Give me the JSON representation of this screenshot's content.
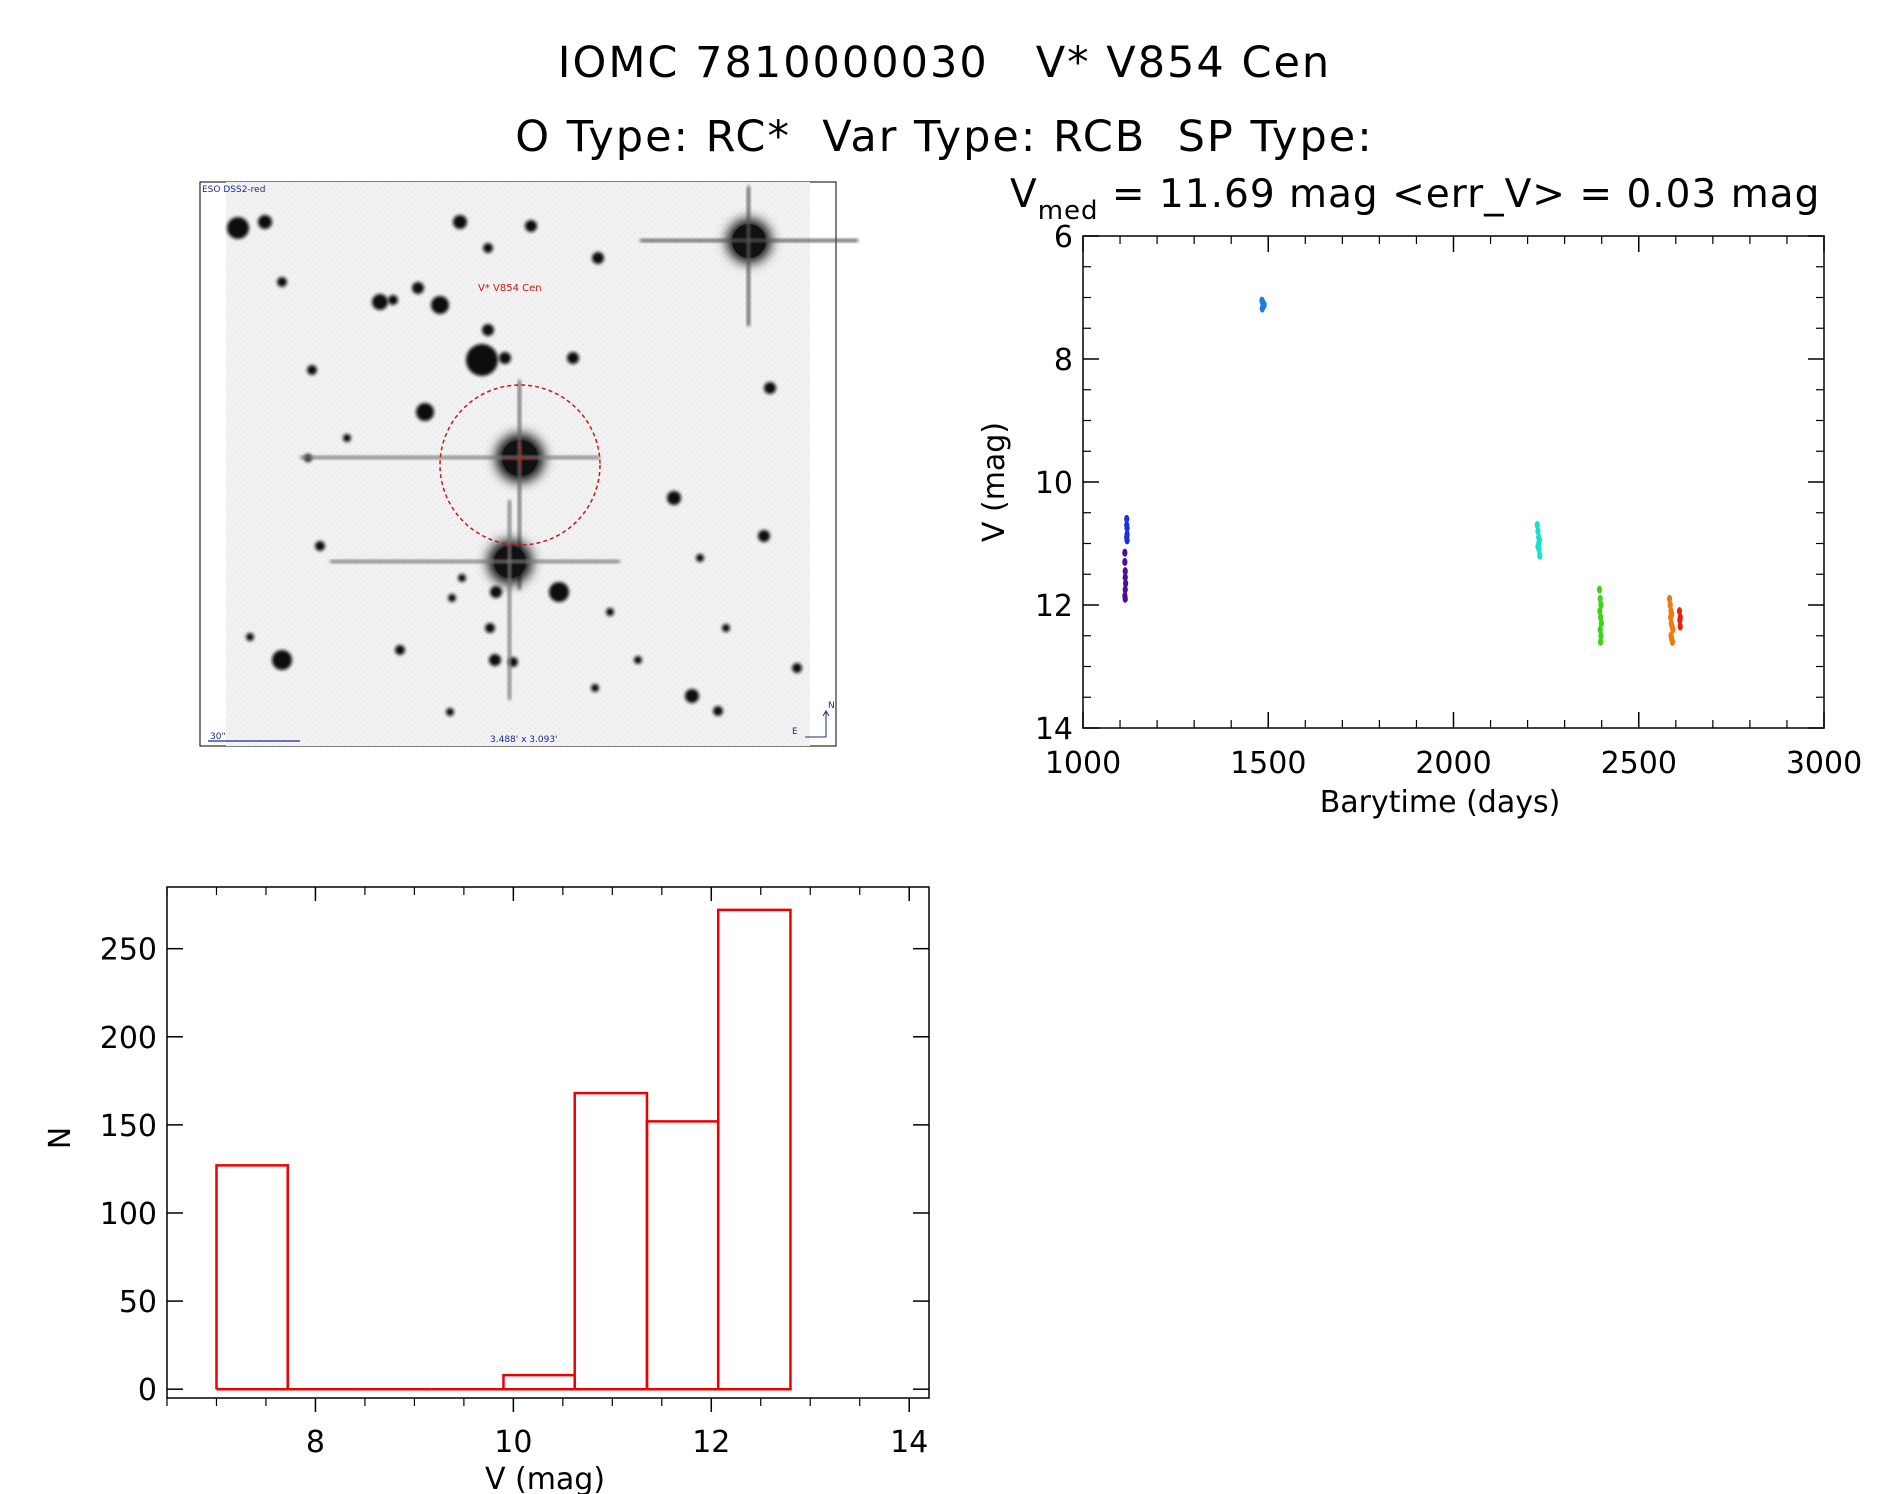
{
  "header": {
    "line1": "IOMC 7810000030   V* V854 Cen",
    "line2": "O Type: RC*  Var Type: RCB  SP Type:"
  },
  "stats": {
    "vmed_label": "V",
    "vmed_sub": "med",
    "text": " = 11.69 mag <err_V> = 0.03 mag"
  },
  "sky_image": {
    "survey_label": "ESO DSS2-red",
    "target_label": "V* V854 Cen",
    "scale_label": "30\"",
    "fov_label": "3.488' x 3.093'",
    "compass_north": "N",
    "compass_east": "E"
  },
  "colors": {
    "hist": "#ee0000",
    "target": "#c81818"
  },
  "chart_data": [
    {
      "type": "scatter",
      "title": "",
      "xlabel": "Barytime (days)",
      "ylabel": "V (mag)",
      "xlim": [
        1000,
        3000
      ],
      "ylim": [
        14,
        6
      ],
      "y_inverted": true,
      "xticks": [
        1000,
        1500,
        2000,
        2500,
        3000
      ],
      "yticks": [
        6,
        8,
        10,
        12,
        14
      ],
      "series": [
        {
          "name": "g1",
          "color": "#4b0d9c",
          "x": [
            1113,
            1113,
            1114,
            1114,
            1115,
            1114,
            1113,
            1114
          ],
          "y": [
            11.15,
            11.3,
            11.45,
            11.55,
            11.65,
            11.75,
            11.85,
            11.9
          ]
        },
        {
          "name": "g2",
          "color": "#1d30e0",
          "x": [
            1118,
            1118,
            1119,
            1119,
            1118,
            1119
          ],
          "y": [
            10.6,
            10.7,
            10.75,
            10.85,
            10.9,
            10.95
          ]
        },
        {
          "name": "g3",
          "color": "#1a7de0",
          "x": [
            1483,
            1485,
            1487,
            1489,
            1486,
            1484
          ],
          "y": [
            7.05,
            7.08,
            7.1,
            7.12,
            7.15,
            7.18
          ]
        },
        {
          "name": "g4",
          "color": "#18e0d0",
          "x": [
            2226,
            2228,
            2230,
            2232,
            2230,
            2228,
            2231,
            2233
          ],
          "y": [
            10.7,
            10.8,
            10.9,
            10.95,
            11.0,
            11.05,
            11.1,
            11.2
          ]
        },
        {
          "name": "g5",
          "color": "#3ed41a",
          "x": [
            2394,
            2396,
            2398,
            2395,
            2397,
            2399,
            2396,
            2398,
            2397
          ],
          "y": [
            11.75,
            11.9,
            12.0,
            12.1,
            12.2,
            12.3,
            12.4,
            12.5,
            12.6
          ]
        },
        {
          "name": "g6",
          "color": "#f07a10",
          "x": [
            2583,
            2585,
            2587,
            2589,
            2586,
            2588,
            2590,
            2592,
            2587,
            2589,
            2591
          ],
          "y": [
            11.9,
            12.0,
            12.1,
            12.15,
            12.2,
            12.3,
            12.35,
            12.4,
            12.5,
            12.55,
            12.6
          ]
        },
        {
          "name": "g7",
          "color": "#e82010",
          "x": [
            2610,
            2612,
            2611,
            2612
          ],
          "y": [
            12.1,
            12.2,
            12.25,
            12.35
          ]
        }
      ]
    },
    {
      "type": "bar",
      "title": "",
      "xlabel": "V (mag)",
      "ylabel": "N",
      "xlim": [
        6.5,
        14.2
      ],
      "ylim": [
        -5,
        285
      ],
      "xticks": [
        8,
        10,
        12,
        14
      ],
      "yticks": [
        0,
        50,
        100,
        150,
        200,
        250
      ],
      "bins": [
        {
          "x0": 7.0,
          "x1": 7.72,
          "value": 127
        },
        {
          "x0": 7.72,
          "x1": 8.45,
          "value": 0
        },
        {
          "x0": 8.45,
          "x1": 9.17,
          "value": 0
        },
        {
          "x0": 9.17,
          "x1": 9.9,
          "value": 0
        },
        {
          "x0": 9.9,
          "x1": 10.62,
          "value": 8
        },
        {
          "x0": 10.62,
          "x1": 11.35,
          "value": 168
        },
        {
          "x0": 11.35,
          "x1": 12.07,
          "value": 152
        },
        {
          "x0": 12.07,
          "x1": 12.8,
          "value": 272
        }
      ]
    }
  ]
}
